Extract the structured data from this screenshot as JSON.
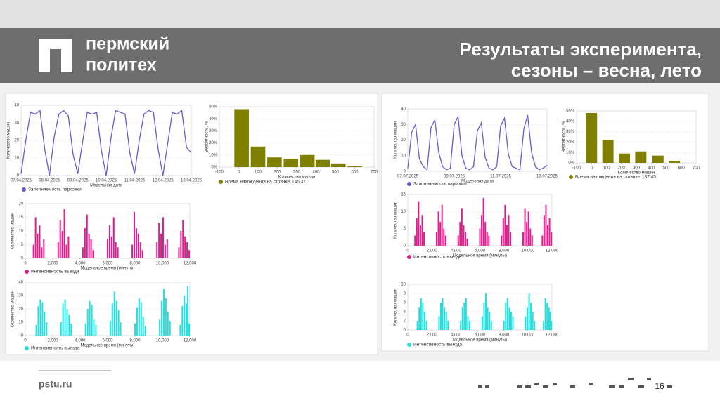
{
  "header": {
    "logo_lines": [
      "пермский",
      "политех"
    ],
    "title_lines": [
      "Результаты эксперимента,",
      "сезоны – весна, лето"
    ]
  },
  "footer": {
    "site": "pstu.ru",
    "page": "16"
  },
  "chart_data": [
    {
      "type": "line",
      "ylabel": "Количество машин",
      "xlabel": "Модельная дата",
      "categories": [
        "07.04.2025",
        null,
        null,
        null,
        null,
        null,
        "08.04.2025",
        null,
        null,
        null,
        null,
        null,
        "09.04.2025",
        null,
        null,
        null,
        null,
        null,
        "10.04.2025",
        null,
        null,
        null,
        null,
        null,
        "11.04.2025",
        null,
        null,
        null,
        null,
        null,
        "12.04.2025",
        null,
        null,
        null,
        null,
        null,
        "13.04.2025"
      ],
      "series": [
        {
          "name": "Заполняемость парковки",
          "color": "#6a5acd",
          "values": [
            1,
            20,
            36,
            35,
            37,
            15,
            0,
            22,
            35,
            37,
            34,
            12,
            1,
            19,
            36,
            35,
            36,
            14,
            0,
            21,
            37,
            36,
            35,
            13,
            1,
            20,
            35,
            37,
            36,
            15,
            0,
            18,
            36,
            35,
            37,
            16,
            13
          ]
        }
      ],
      "ylim": [
        0,
        40
      ],
      "yticks": [
        0,
        10,
        20,
        30,
        40
      ]
    },
    {
      "type": "bar",
      "ylabel": "Вероятность, %",
      "xlabel": "Количество машин",
      "annotation": "145.37",
      "x": [
        15,
        100,
        185,
        270,
        355,
        435,
        515,
        600
      ],
      "series": [
        {
          "name": "Время нахождения на стоянке",
          "color": "#808000",
          "values": [
            48,
            17,
            8,
            7,
            10,
            6,
            3,
            1
          ]
        }
      ],
      "xlim": [
        -100,
        700
      ],
      "xticks": [
        -100,
        0,
        100,
        200,
        300,
        400,
        500,
        600,
        700
      ],
      "ylim": [
        0,
        50
      ],
      "yticks": [
        {
          "value": 0,
          "label": "0%"
        },
        {
          "value": 10,
          "label": "10%"
        },
        {
          "value": 20,
          "label": "20%"
        },
        {
          "value": 30,
          "label": "30%"
        },
        {
          "value": 40,
          "label": "40%"
        },
        {
          "value": 50,
          "label": "50%"
        }
      ]
    },
    {
      "type": "stem",
      "ylabel": "Количество машин",
      "xlabel": "Модельное время (минуты)",
      "x": [
        600,
        750,
        900,
        1050,
        1200,
        1350,
        2400,
        2550,
        2700,
        2850,
        3000,
        3150,
        4200,
        4350,
        4500,
        4650,
        4800,
        4950,
        6000,
        6150,
        6300,
        6450,
        6600,
        6750,
        7800,
        7950,
        8100,
        8250,
        8400,
        8550,
        9600,
        9750,
        9900,
        10050,
        10200,
        10350,
        11200,
        11350,
        11500,
        11650,
        11800,
        11950
      ],
      "series": [
        {
          "name": "Интенсивность въезда",
          "color": "#e8198b",
          "values": [
            5,
            15,
            9,
            12,
            4,
            7,
            6,
            14,
            10,
            18,
            5,
            8,
            4,
            11,
            16,
            9,
            7,
            3,
            7,
            12,
            8,
            15,
            6,
            4,
            5,
            17,
            11,
            9,
            6,
            3,
            6,
            13,
            9,
            15,
            5,
            7,
            4,
            10,
            14,
            8,
            6,
            3
          ]
        }
      ],
      "xlim": [
        0,
        12000
      ],
      "xticks": [
        0,
        {
          "value": 2000,
          "label": "2,000"
        },
        {
          "value": 4000,
          "label": "4,000"
        },
        {
          "value": 6000,
          "label": "6,000"
        },
        {
          "value": 8000,
          "label": "8,000"
        },
        {
          "value": 10000,
          "label": "10,000"
        },
        {
          "value": 12000,
          "label": "12,000"
        }
      ],
      "ylim": [
        0,
        20
      ],
      "yticks": [
        0,
        5,
        10,
        15,
        20
      ]
    },
    {
      "type": "stem",
      "ylabel": "Количество машин",
      "xlabel": "Модельное время (минуты)",
      "x": [
        800,
        950,
        1100,
        1250,
        1400,
        1550,
        2600,
        2750,
        2900,
        3050,
        3200,
        3350,
        4400,
        4550,
        4700,
        4850,
        5000,
        5150,
        6200,
        6350,
        6500,
        6650,
        6800,
        6950,
        8000,
        8150,
        8300,
        8450,
        8600,
        8750,
        9800,
        9950,
        10100,
        10250,
        10400,
        10550,
        11300,
        11450,
        11600,
        11750,
        11850,
        11950
      ],
      "series": [
        {
          "name": "Интенсивность выезда",
          "color": "#22e0e0",
          "values": [
            8,
            22,
            27,
            25,
            18,
            10,
            10,
            24,
            27,
            20,
            16,
            9,
            9,
            20,
            26,
            23,
            12,
            8,
            11,
            24,
            33,
            26,
            19,
            10,
            9,
            21,
            28,
            25,
            14,
            7,
            12,
            26,
            35,
            28,
            18,
            11,
            8,
            22,
            30,
            24,
            37,
            9
          ]
        }
      ],
      "xlim": [
        0,
        12000
      ],
      "xticks": [
        0,
        {
          "value": 2000,
          "label": "2,000"
        },
        {
          "value": 4000,
          "label": "4,000"
        },
        {
          "value": 6000,
          "label": "6,000"
        },
        {
          "value": 8000,
          "label": "8,000"
        },
        {
          "value": 10000,
          "label": "10,000"
        },
        {
          "value": 12000,
          "label": "12,000"
        }
      ],
      "ylim": [
        0,
        40
      ],
      "yticks": [
        0,
        10,
        20,
        30,
        40
      ]
    },
    {
      "type": "line",
      "ylabel": "Количество машин",
      "xlabel": "Модельная дата",
      "categories": [
        "07.07.2025",
        null,
        null,
        null,
        null,
        null,
        null,
        null,
        null,
        null,
        null,
        null,
        "09.07.2025",
        null,
        null,
        null,
        null,
        null,
        null,
        null,
        null,
        null,
        null,
        null,
        "11.07.2025",
        null,
        null,
        null,
        null,
        null,
        null,
        null,
        null,
        null,
        null,
        null,
        "13.07.2025"
      ],
      "series": [
        {
          "name": "Заполняемость парковки",
          "color": "#6a5acd",
          "values": [
            2,
            25,
            30,
            8,
            3,
            1,
            28,
            33,
            12,
            3,
            1,
            2,
            30,
            35,
            10,
            2,
            1,
            3,
            26,
            31,
            9,
            2,
            1,
            3,
            29,
            34,
            11,
            3,
            2,
            1,
            27,
            36,
            12,
            3,
            1,
            2,
            4
          ]
        }
      ],
      "ylim": [
        0,
        40
      ],
      "yticks": [
        0,
        10,
        20,
        30,
        40
      ]
    },
    {
      "type": "bar",
      "ylabel": "Вероятность, %",
      "xlabel": "Количество машин",
      "annotation": "137.45",
      "x": [
        0,
        110,
        220,
        330,
        445,
        555
      ],
      "series": [
        {
          "name": "Время нахождения на стоянке",
          "color": "#808000",
          "values": [
            48,
            22,
            9,
            11,
            7,
            2
          ]
        }
      ],
      "xlim": [
        -100,
        700
      ],
      "xticks": [
        -100,
        0,
        100,
        200,
        300,
        400,
        500,
        600,
        700
      ],
      "ylim": [
        0,
        50
      ],
      "yticks": [
        {
          "value": 0,
          "label": "0%"
        },
        {
          "value": 10,
          "label": "10%"
        },
        {
          "value": 20,
          "label": "20%"
        },
        {
          "value": 30,
          "label": "30%"
        },
        {
          "value": 40,
          "label": "40%"
        },
        {
          "value": 50,
          "label": "50%"
        }
      ]
    },
    {
      "type": "stem",
      "ylabel": "Количество машин",
      "xlabel": "Модельное время (минуты)",
      "x": [
        600,
        750,
        900,
        1050,
        1200,
        1350,
        2400,
        2550,
        2700,
        2850,
        3000,
        3150,
        4200,
        4350,
        4500,
        4650,
        4800,
        4950,
        6000,
        6150,
        6300,
        6450,
        6600,
        6750,
        7800,
        7950,
        8100,
        8250,
        8400,
        8550,
        9600,
        9750,
        9900,
        10050,
        10200,
        10350,
        11200,
        11350,
        11500,
        11650,
        11800,
        11950
      ],
      "series": [
        {
          "name": "Интенсивность въезда",
          "color": "#e8198b",
          "values": [
            3,
            8,
            13,
            6,
            9,
            4,
            4,
            10,
            7,
            12,
            5,
            3,
            3,
            7,
            11,
            6,
            4,
            2,
            5,
            9,
            14,
            7,
            4,
            3,
            3,
            8,
            12,
            6,
            9,
            4,
            4,
            11,
            7,
            10,
            5,
            3,
            3,
            9,
            12,
            6,
            8,
            4
          ]
        }
      ],
      "xlim": [
        0,
        12000
      ],
      "xticks": [
        0,
        {
          "value": 2000,
          "label": "2,000"
        },
        {
          "value": 4000,
          "label": "4,000"
        },
        {
          "value": 6000,
          "label": "6,000"
        },
        {
          "value": 8000,
          "label": "8,000"
        },
        {
          "value": 10000,
          "label": "10,000"
        },
        {
          "value": 12000,
          "label": "12,000"
        }
      ],
      "ylim": [
        0,
        15
      ],
      "yticks": [
        0,
        5,
        10,
        15
      ]
    },
    {
      "type": "stem",
      "ylabel": "Количество машин",
      "xlabel": "Модельное время (минуты)",
      "x": [
        800,
        950,
        1100,
        1250,
        1400,
        1550,
        2600,
        2750,
        2900,
        3050,
        3200,
        3350,
        4400,
        4550,
        4700,
        4850,
        5000,
        5150,
        6200,
        6350,
        6500,
        6650,
        6800,
        6950,
        8000,
        8150,
        8300,
        8450,
        8600,
        8750,
        9800,
        9950,
        10100,
        10250,
        10400,
        10550,
        11300,
        11450,
        11600,
        11750,
        11850,
        11950
      ],
      "series": [
        {
          "name": "Интенсивность выезда",
          "color": "#22e0e0",
          "values": [
            2,
            5,
            7,
            6,
            4,
            2,
            3,
            6,
            7,
            5,
            4,
            2,
            2,
            5,
            6,
            7,
            3,
            2,
            3,
            6,
            8,
            5,
            4,
            2,
            2,
            6,
            7,
            5,
            4,
            3,
            3,
            5,
            8,
            6,
            4,
            2,
            2,
            7,
            6,
            5,
            4,
            2
          ]
        }
      ],
      "xlim": [
        0,
        12000
      ],
      "xticks": [
        0,
        {
          "value": 2000,
          "label": "2,000"
        },
        {
          "value": 4000,
          "label": "4,000"
        },
        {
          "value": 6000,
          "label": "6,000"
        },
        {
          "value": 8000,
          "label": "8,000"
        },
        {
          "value": 10000,
          "label": "10,000"
        },
        {
          "value": 12000,
          "label": "12,000"
        }
      ],
      "ylim": [
        0,
        10
      ],
      "yticks": [
        0,
        2,
        4,
        6,
        8,
        10
      ]
    }
  ]
}
